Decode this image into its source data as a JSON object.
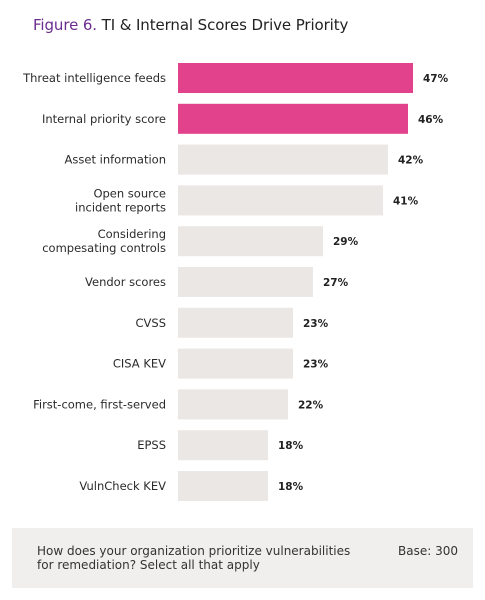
{
  "title": {
    "prefix": "Figure 6.",
    "text": "TI & Internal Scores Drive Priority"
  },
  "colors": {
    "highlight": "#e2418c",
    "neutral": "#ebe7e4",
    "title_accent": "#6b2d8f",
    "footer_bg": "#f1efee"
  },
  "chart_data": {
    "type": "bar",
    "orientation": "horizontal",
    "categories": [
      "Threat intelligence feeds",
      "Internal priority score",
      "Asset information",
      "Open source\nincident reports",
      "Considering\ncompesating controls",
      "Vendor scores",
      "CVSS",
      "CISA KEV",
      "First-come, first-served",
      "EPSS",
      "VulnCheck KEV"
    ],
    "values": [
      47,
      46,
      42,
      41,
      29,
      27,
      23,
      23,
      22,
      18,
      18
    ],
    "value_labels": [
      "47%",
      "46%",
      "42%",
      "41%",
      "29%",
      "27%",
      "23%",
      "23%",
      "22%",
      "18%",
      "18%"
    ],
    "highlighted": [
      true,
      true,
      false,
      false,
      false,
      false,
      false,
      false,
      false,
      false,
      false
    ],
    "value_unit": "%",
    "xlim": [
      0,
      60
    ],
    "grid": false,
    "legend": "none"
  },
  "footer": {
    "question": "How does your organization prioritize vulnerabilities for remediation? Select all that apply",
    "base": "Base: 300"
  }
}
